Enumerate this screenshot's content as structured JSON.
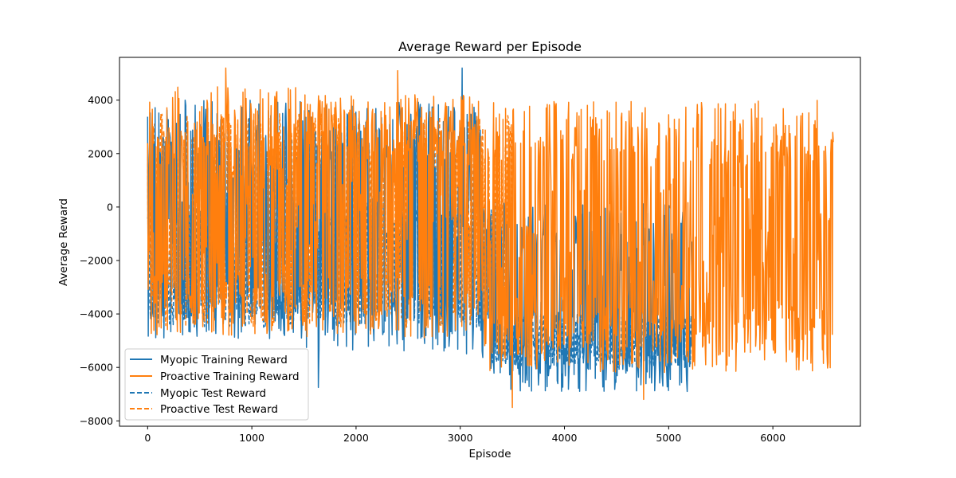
{
  "chart_data": {
    "type": "line",
    "title": "Average Reward per Episode",
    "xlabel": "Episode",
    "ylabel": "Average Reward",
    "xlim": [
      -270,
      6840
    ],
    "ylim": [
      -8200,
      5600
    ],
    "xticks": [
      0,
      1000,
      2000,
      3000,
      4000,
      5000,
      6000
    ],
    "xtick_labels": [
      "0",
      "1000",
      "2000",
      "3000",
      "4000",
      "5000",
      "6000"
    ],
    "yticks": [
      -8000,
      -6000,
      -4000,
      -2000,
      0,
      2000,
      4000
    ],
    "ytick_labels": [
      "−8000",
      "−6000",
      "−4000",
      "−2000",
      "0",
      "2000",
      "4000"
    ],
    "grid": false,
    "legend_position": "lower-left",
    "colors": {
      "myopic": "#1f77b4",
      "proactive": "#ff7f0e"
    },
    "series": [
      {
        "name": "Myopic Training Reward",
        "style": "solid",
        "color": "#1f77b4",
        "x_range": [
          0,
          5230
        ],
        "segments": [
          {
            "x": [
              0,
              1500
            ],
            "range": [
              -5000,
              4000
            ],
            "mid": -500
          },
          {
            "x": [
              1500,
              3200
            ],
            "range": [
              -5500,
              4000
            ],
            "mid": 1000
          },
          {
            "x": [
              3200,
              5230
            ],
            "range": [
              -6900,
              200
            ],
            "mid": -4000
          }
        ],
        "peaks": [
          {
            "x": 3020,
            "y": 5200
          },
          {
            "x": 1640,
            "y": -6750
          },
          {
            "x": 5180,
            "y": -6900
          }
        ]
      },
      {
        "name": "Proactive Training Reward",
        "style": "solid",
        "color": "#ff7f0e",
        "x_range": [
          0,
          6580
        ],
        "segments": [
          {
            "x": [
              0,
              1500
            ],
            "range": [
              -4800,
              4500
            ],
            "mid": 0
          },
          {
            "x": [
              1500,
              3200
            ],
            "range": [
              -4900,
              4200
            ],
            "mid": 1200
          },
          {
            "x": [
              3200,
              6580
            ],
            "range": [
              -6200,
              4000
            ],
            "mid": -2000
          }
        ],
        "peaks": [
          {
            "x": 750,
            "y": 5200
          },
          {
            "x": 2400,
            "y": 5100
          },
          {
            "x": 3500,
            "y": -7500
          },
          {
            "x": 4760,
            "y": -7200
          }
        ]
      },
      {
        "name": "Myopic Test Reward",
        "style": "dashed",
        "color": "#1f77b4",
        "x_range": [
          0,
          5230
        ],
        "segments": [
          {
            "x": [
              0,
              3300
            ],
            "range": [
              -4500,
              200
            ],
            "mid": -1500
          },
          {
            "x": [
              3300,
              5230
            ],
            "range": [
              -6000,
              -4000
            ],
            "mid": -5100
          }
        ],
        "peaks": []
      },
      {
        "name": "Proactive Test Reward",
        "style": "dashed",
        "color": "#ff7f0e",
        "x_range": [
          0,
          3500
        ],
        "segments": [
          {
            "x": [
              0,
              3500
            ],
            "range": [
              -4500,
              3500
            ],
            "mid": -1000
          }
        ],
        "peaks": []
      }
    ]
  }
}
